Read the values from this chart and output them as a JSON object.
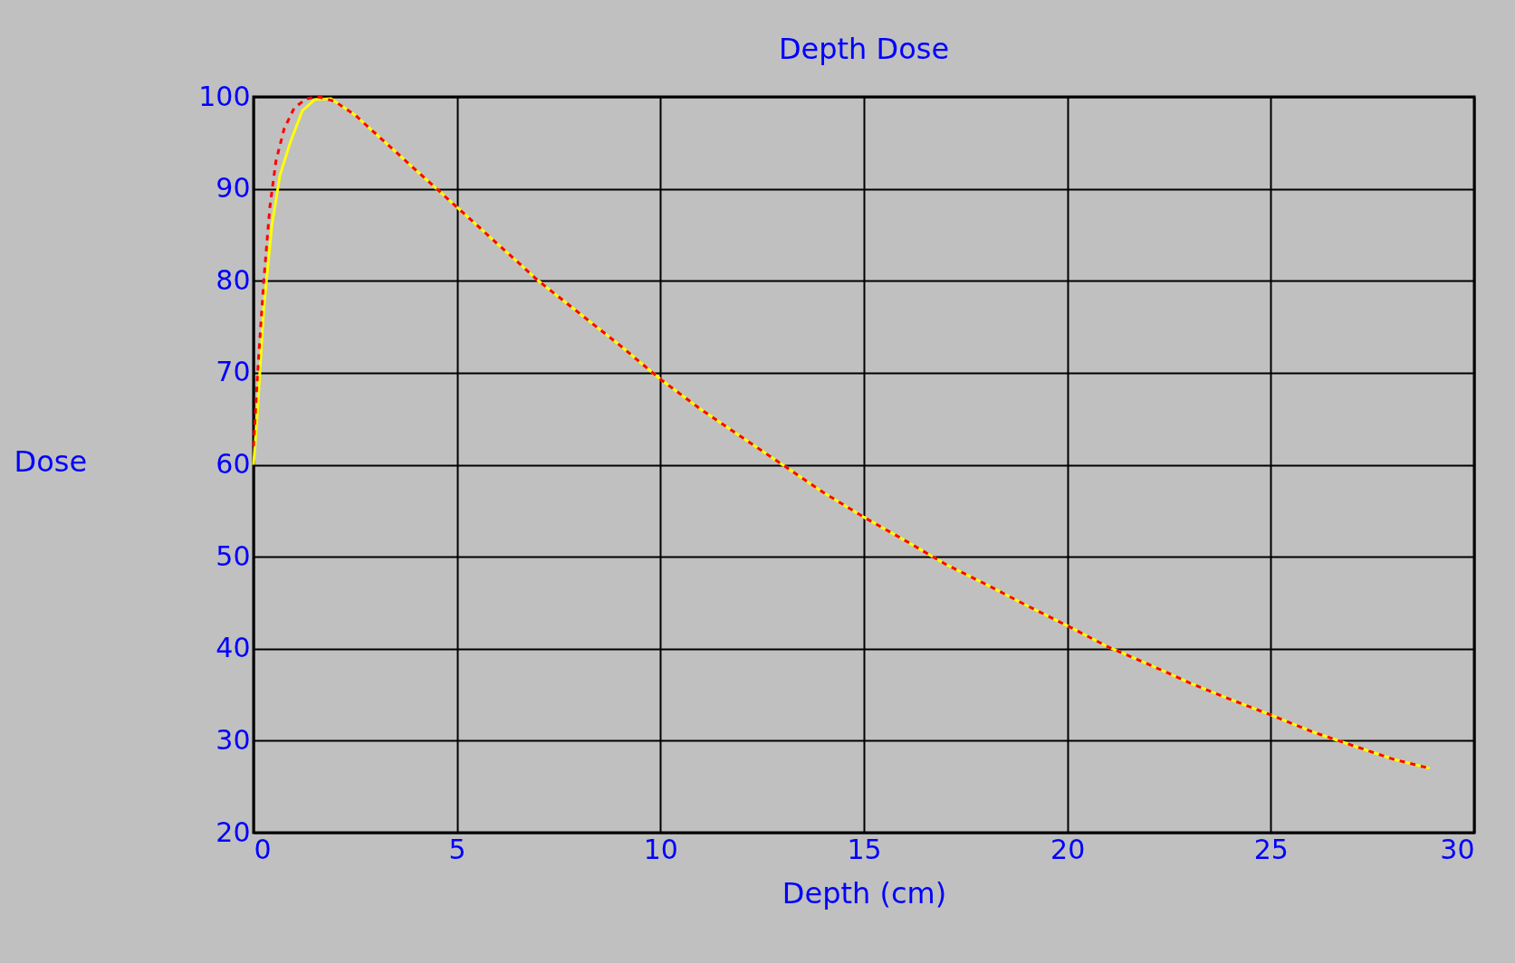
{
  "chart_data": {
    "type": "line",
    "title": "Depth Dose",
    "xlabel": "Depth (cm)",
    "ylabel": "Dose",
    "xlim": [
      0,
      30
    ],
    "xticks": [
      0,
      5,
      10,
      15,
      20,
      25,
      30
    ],
    "ylim": [
      20,
      100
    ],
    "yticks": [
      20,
      30,
      40,
      50,
      60,
      70,
      80,
      90,
      100
    ],
    "grid": true,
    "marker": "none",
    "line_style": "solid",
    "series": [
      {
        "color": "#ffff00",
        "x": [
          0,
          0.1,
          0.25,
          0.45,
          0.65,
          0.9,
          1.2,
          1.5,
          1.9,
          2.5,
          3,
          4,
          5,
          6,
          7,
          8,
          9,
          10,
          11,
          12,
          13,
          14,
          15,
          16,
          17,
          18,
          19,
          20,
          21,
          22,
          23,
          24,
          25,
          26,
          27,
          28,
          28.9
        ],
        "values": [
          60,
          66,
          77,
          86,
          91.5,
          95,
          98.5,
          99.7,
          99.8,
          98,
          96,
          92,
          88,
          84,
          80,
          76.5,
          73,
          69.3,
          66,
          63,
          60,
          57,
          54.3,
          51.8,
          49.2,
          47,
          44.7,
          42.5,
          40.2,
          38.3,
          36.3,
          34.5,
          32.8,
          31,
          29.5,
          28,
          27
        ]
      },
      {
        "color": "#ff0000",
        "line_style": "dashed",
        "x": [
          0,
          0.1,
          0.25,
          0.4,
          0.55,
          0.75,
          1.0,
          1.3,
          1.6,
          2.0,
          2.5,
          3,
          4,
          5,
          6,
          7,
          8,
          9,
          10,
          11,
          12,
          13,
          14,
          15,
          16,
          17,
          18,
          19,
          20,
          21,
          22,
          23,
          24,
          25,
          26,
          27,
          28,
          28.9
        ],
        "values": [
          62,
          70,
          80,
          88,
          93,
          96.5,
          98.8,
          99.8,
          100,
          99.5,
          98,
          96,
          92,
          88,
          84,
          80,
          76.5,
          73,
          69.3,
          66,
          63,
          60,
          57,
          54.3,
          51.8,
          49.2,
          47,
          44.7,
          42.5,
          40.2,
          38.3,
          36.3,
          34.5,
          32.8,
          31,
          29.5,
          28,
          27
        ]
      }
    ]
  }
}
